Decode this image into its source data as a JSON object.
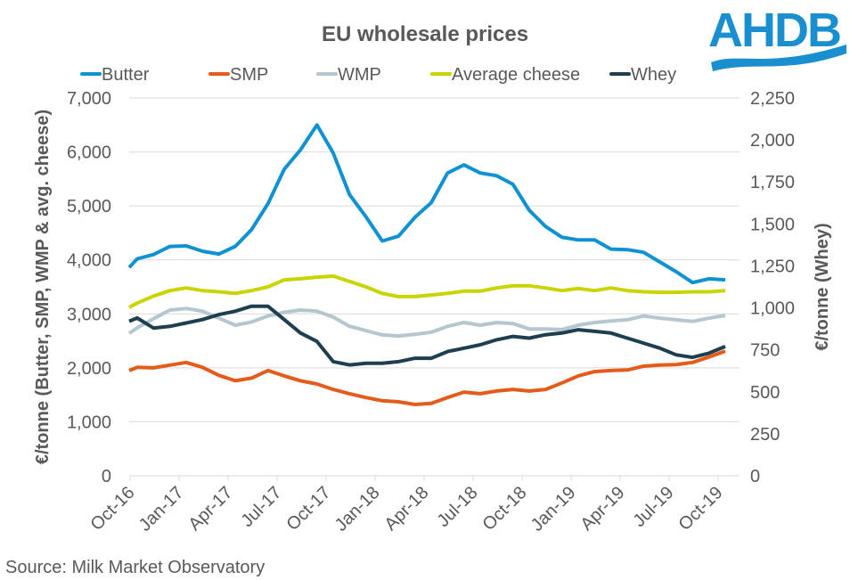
{
  "logo": {
    "text": "AHDB",
    "color": "#1a8fd0"
  },
  "source": "Source: Milk Market Observatory",
  "chart_data": {
    "type": "line",
    "title": "EU wholesale prices",
    "xlabel": "",
    "ylabel": "€/tonne (Butter, SMP, WMP & avg. cheese)",
    "y2label": "€/tonne (Whey)",
    "ylim": [
      0,
      7000
    ],
    "y2lim": [
      0,
      2250
    ],
    "yticks": [
      "0",
      "1,000",
      "2,000",
      "3,000",
      "4,000",
      "5,000",
      "6,000",
      "7,000"
    ],
    "y2ticks": [
      "0",
      "250",
      "500",
      "750",
      "1,000",
      "1,250",
      "1,500",
      "1,750",
      "2,000",
      "2,250"
    ],
    "xticks": [
      "Oct-16",
      "Jan-17",
      "Apr-17",
      "Jul-17",
      "Oct-17",
      "Jan-18",
      "Apr-18",
      "Jul-18",
      "Oct-18",
      "Jan-19",
      "Apr-19",
      "Jul-19",
      "Oct-19"
    ],
    "grid": true,
    "legend_position": "top",
    "x_note": "monthly points, Oct-16 to Oct-19 (first point at start of Oct-16)",
    "x": [
      "Oct-16 (start)",
      "Oct-16",
      "Nov-16",
      "Dec-16",
      "Jan-17",
      "Feb-17",
      "Mar-17",
      "Apr-17",
      "May-17",
      "Jun-17",
      "Jul-17",
      "Aug-17",
      "Sep-17",
      "Oct-17",
      "Nov-17",
      "Dec-17",
      "Jan-18",
      "Feb-18",
      "Mar-18",
      "Apr-18",
      "May-18",
      "Jun-18",
      "Jul-18",
      "Aug-18",
      "Sep-18",
      "Oct-18",
      "Nov-18",
      "Dec-18",
      "Jan-19",
      "Feb-19",
      "Mar-19",
      "Apr-19",
      "May-19",
      "Jun-19",
      "Jul-19",
      "Aug-19",
      "Sep-19",
      "Oct-19"
    ],
    "series": [
      {
        "name": "Butter",
        "axis": "left",
        "color": "#0f92d2",
        "values": [
          3860,
          4020,
          4100,
          4250,
          4260,
          4160,
          4110,
          4250,
          4560,
          5040,
          5680,
          6040,
          6500,
          5980,
          5210,
          4800,
          4350,
          4440,
          4790,
          5060,
          5610,
          5760,
          5610,
          5560,
          5400,
          4920,
          4620,
          4420,
          4370,
          4370,
          4200,
          4190,
          4140,
          3960,
          3780,
          3580,
          3650,
          3630
        ]
      },
      {
        "name": "SMP",
        "axis": "left",
        "color": "#e35c19",
        "values": [
          1950,
          2010,
          2000,
          2050,
          2100,
          2010,
          1860,
          1760,
          1810,
          1950,
          1850,
          1760,
          1700,
          1600,
          1520,
          1450,
          1390,
          1370,
          1320,
          1340,
          1450,
          1550,
          1520,
          1570,
          1600,
          1570,
          1600,
          1720,
          1850,
          1930,
          1950,
          1960,
          2030,
          2050,
          2060,
          2100,
          2200,
          2310
        ]
      },
      {
        "name": "WMP",
        "axis": "left",
        "color": "#b4c7d0",
        "values": [
          2640,
          2740,
          2910,
          3070,
          3100,
          3050,
          2920,
          2790,
          2850,
          2960,
          3030,
          3070,
          3050,
          2940,
          2770,
          2690,
          2610,
          2590,
          2620,
          2660,
          2770,
          2840,
          2790,
          2840,
          2820,
          2720,
          2720,
          2710,
          2790,
          2840,
          2870,
          2890,
          2960,
          2920,
          2890,
          2860,
          2920,
          2970
        ]
      },
      {
        "name": "Average cheese",
        "axis": "left",
        "color": "#c9d400",
        "values": [
          3120,
          3200,
          3330,
          3430,
          3480,
          3430,
          3410,
          3380,
          3430,
          3500,
          3630,
          3650,
          3680,
          3700,
          3600,
          3500,
          3380,
          3320,
          3320,
          3350,
          3380,
          3420,
          3420,
          3480,
          3520,
          3520,
          3480,
          3430,
          3470,
          3430,
          3480,
          3430,
          3410,
          3400,
          3400,
          3410,
          3410,
          3430
        ]
      },
      {
        "name": "Whey",
        "axis": "right",
        "color": "#1e3f4f",
        "values": [
          920,
          940,
          880,
          890,
          910,
          930,
          960,
          980,
          1010,
          1010,
          930,
          850,
          800,
          680,
          660,
          670,
          670,
          680,
          700,
          700,
          740,
          760,
          780,
          810,
          830,
          820,
          840,
          850,
          870,
          860,
          850,
          820,
          790,
          760,
          720,
          705,
          730,
          770
        ]
      }
    ]
  }
}
